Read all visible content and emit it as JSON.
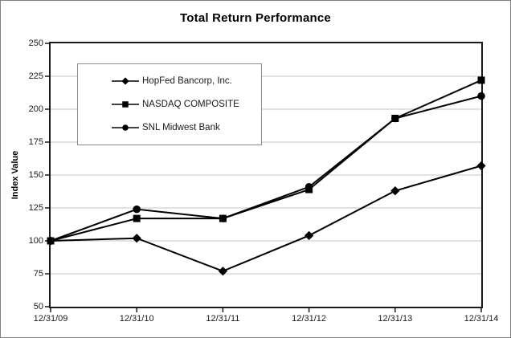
{
  "chart_data": {
    "type": "line",
    "title": "Total Return Performance",
    "xlabel": "",
    "ylabel": "Index Value",
    "categories": [
      "12/31/09",
      "12/31/10",
      "12/31/11",
      "12/31/12",
      "12/31/13",
      "12/31/14"
    ],
    "series": [
      {
        "name": "HopFed Bancorp, Inc.",
        "marker": "diamond",
        "values": [
          100,
          102,
          77,
          104,
          138,
          157
        ]
      },
      {
        "name": "NASDAQ COMPOSITE",
        "marker": "square",
        "values": [
          100,
          117,
          117,
          139,
          193,
          222
        ]
      },
      {
        "name": "SNL Midwest Bank",
        "marker": "circle",
        "values": [
          100,
          124,
          117,
          141,
          193,
          210
        ]
      }
    ],
    "ylim": [
      50,
      250
    ],
    "y_ticks": [
      50,
      75,
      100,
      125,
      150,
      175,
      200,
      225,
      250
    ],
    "grid": true,
    "legend_position": "upper-left",
    "line_color": "#000000",
    "grid_color": "#c6c6c6",
    "axis_color": "#1a1a1a"
  }
}
